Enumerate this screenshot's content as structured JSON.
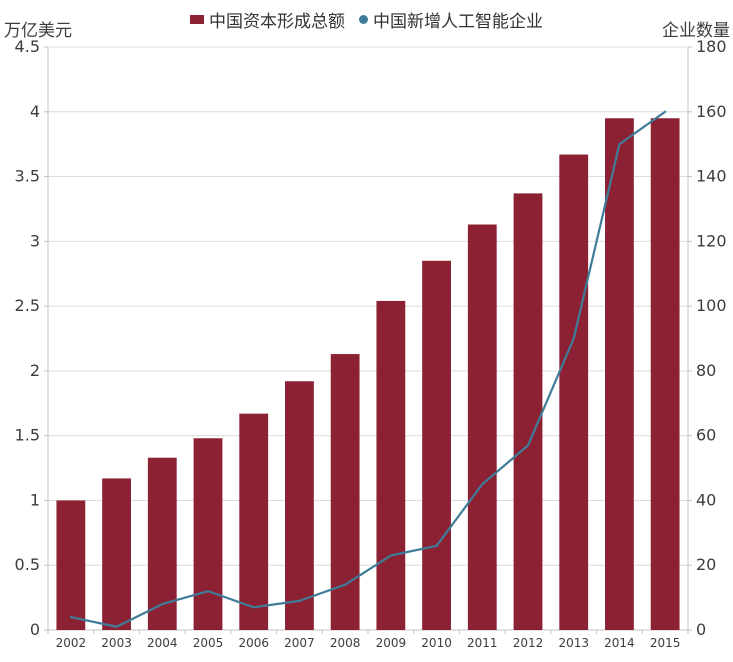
{
  "header": {
    "left_axis_unit": "万亿美元",
    "right_axis_unit": "企业数量"
  },
  "chart_data": {
    "type": "bar",
    "subtype": "combo-bar-line",
    "title": "",
    "categories": [
      "2002",
      "2003",
      "2004",
      "2005",
      "2006",
      "2007",
      "2008",
      "2009",
      "2010",
      "2011",
      "2012",
      "2013",
      "2014",
      "2015"
    ],
    "series": [
      {
        "name": "中国资本形成总额",
        "type": "bar",
        "axis": "left",
        "unit": "万亿美元",
        "color": "#8C2134",
        "values": [
          1.0,
          1.17,
          1.33,
          1.48,
          1.67,
          1.92,
          2.13,
          2.54,
          2.85,
          3.13,
          3.37,
          3.67,
          3.95,
          3.95
        ]
      },
      {
        "name": "中国新增人工智能企业",
        "type": "line",
        "axis": "right",
        "unit": "企业数量",
        "color": "#3F7C99",
        "values": [
          4,
          1,
          8,
          12,
          7,
          9,
          14,
          23,
          26,
          45,
          57,
          90,
          150,
          160
        ]
      }
    ],
    "left_axis": {
      "label": "万亿美元",
      "min": 0,
      "max": 4.5,
      "step": 0.5
    },
    "right_axis": {
      "label": "企业数量",
      "min": 0,
      "max": 180,
      "step": 20
    },
    "grid": true,
    "legend_position": "top"
  },
  "style": {
    "grid_color": "#dcdcdc",
    "axis_color": "#c3c3c3",
    "label_color": "#3d3d3d",
    "background": "#ffffff"
  }
}
